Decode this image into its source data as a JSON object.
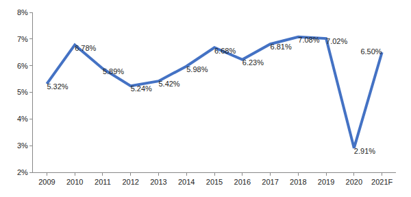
{
  "chart_data": {
    "type": "line",
    "categories": [
      "2009",
      "2010",
      "2011",
      "2012",
      "2013",
      "2014",
      "2015",
      "2016",
      "2017",
      "2018",
      "2019",
      "2020",
      "2021F"
    ],
    "values": [
      5.32,
      6.78,
      5.89,
      5.24,
      5.42,
      5.98,
      6.68,
      6.23,
      6.81,
      7.08,
      7.02,
      2.91,
      6.5
    ],
    "value_labels": [
      "5.32%",
      "6.78%",
      "5.89%",
      "5.24%",
      "5.42%",
      "5.98%",
      "6.68%",
      "6.23%",
      "6.81%",
      "7.08%",
      "7.02%",
      "2.91%",
      "6.50%"
    ],
    "color": "#4472c4",
    "ylim": [
      2,
      8
    ],
    "yticks": [
      {
        "value": 2,
        "label": "2%"
      },
      {
        "value": 3,
        "label": "3%"
      },
      {
        "value": 4,
        "label": "4%"
      },
      {
        "value": 5,
        "label": "5%"
      },
      {
        "value": 6,
        "label": "6%"
      },
      {
        "value": 7,
        "label": "7%"
      },
      {
        "value": 8,
        "label": "8%"
      }
    ],
    "grid": false,
    "data_labels": true
  }
}
